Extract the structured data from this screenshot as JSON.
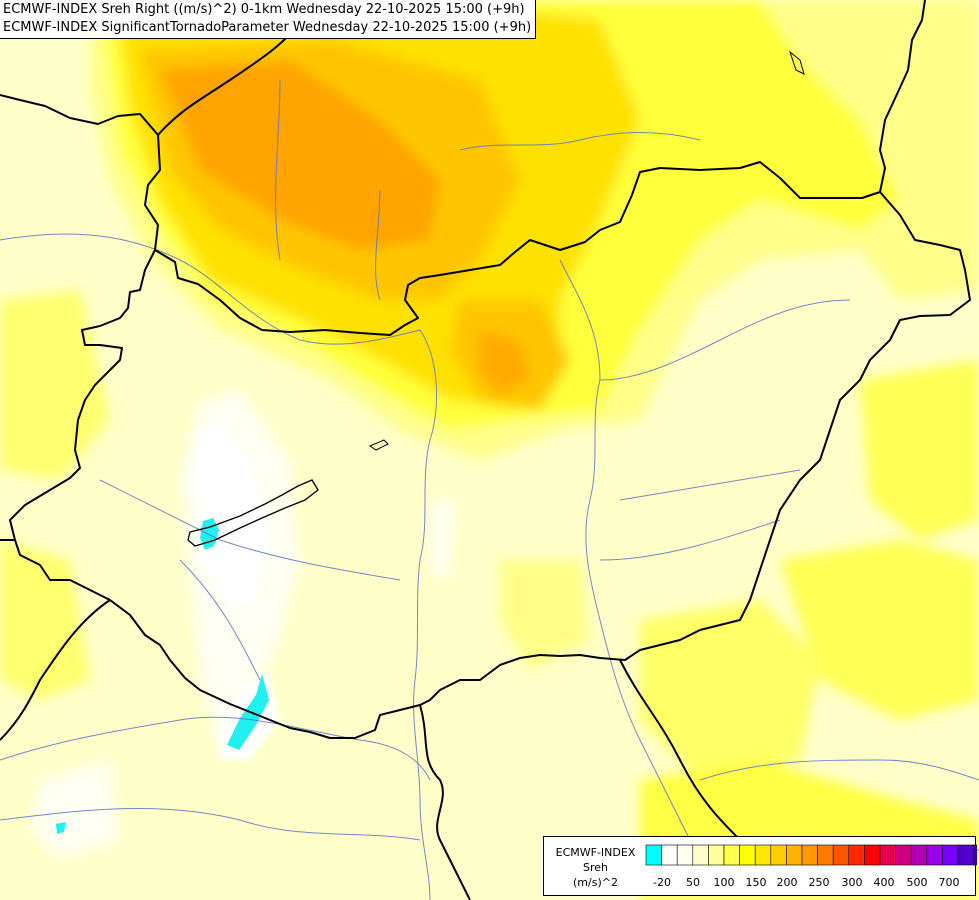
{
  "title": {
    "line1": "ECMWF-INDEX Sreh Right ((m/s)^2) 0-1km Wednesday 22-10-2025 15:00 (+9h)",
    "line2": "ECMWF-INDEX SignificantTornadoParameter Wednesday 22-10-2025 15:00 (+9h)"
  },
  "legend": {
    "source": "ECMWF-INDEX",
    "variable": "Sreh",
    "unit": "(m/s)^2",
    "colors": [
      "#00ffff",
      "#ffffff",
      "#fffff0",
      "#ffffcc",
      "#ffff99",
      "#ffff4d",
      "#ffff00",
      "#ffe600",
      "#ffcc00",
      "#ffb300",
      "#ff9900",
      "#ff7a00",
      "#ff5500",
      "#ff2a00",
      "#ff0000",
      "#e6004d",
      "#cc0080",
      "#b300b3",
      "#9900e6",
      "#7700ff",
      "#5500cc",
      "#330099",
      "#000080"
    ],
    "tick_labels": [
      "-20",
      "50",
      "100",
      "150",
      "200",
      "250",
      "300",
      "400",
      "500",
      "700"
    ]
  }
}
